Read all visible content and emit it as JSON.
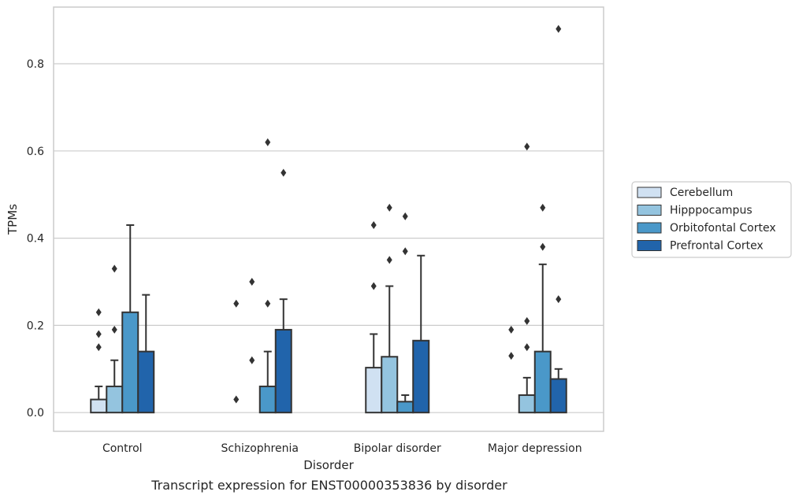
{
  "caption": "Transcript expression for ENST00000353836 by disorder",
  "chart_data": {
    "type": "bar",
    "xlabel": "Disorder",
    "ylabel": "TPMs",
    "ylim": [
      -0.043,
      0.93
    ],
    "yticks": [
      0.0,
      0.2,
      0.4,
      0.6,
      0.8
    ],
    "ytick_labels": [
      "0.0",
      "0.2",
      "0.4",
      "0.6",
      "0.8"
    ],
    "grid": "horizontal",
    "legend_position": "right",
    "categories": [
      "Control",
      "Schizophrenia",
      "Bipolar disorder",
      "Major depression"
    ],
    "series": [
      {
        "name": "Cerebellum",
        "color": "#d0e1f2",
        "values": [
          0.03,
          0.0,
          0.103,
          0.0
        ],
        "error_upper": [
          0.06,
          0.0,
          0.18,
          0.0
        ],
        "outliers": [
          [
            0.23,
            0.18,
            0.15
          ],
          [
            0.25,
            0.03
          ],
          [
            0.43,
            0.29
          ],
          [
            0.19,
            0.13
          ]
        ]
      },
      {
        "name": "Hipppocampus",
        "color": "#94c4df",
        "values": [
          0.06,
          0.0,
          0.128,
          0.04
        ],
        "error_upper": [
          0.12,
          0.0,
          0.29,
          0.08
        ],
        "outliers": [
          [
            0.33,
            0.19
          ],
          [
            0.3,
            0.12
          ],
          [
            0.47,
            0.35
          ],
          [
            0.61,
            0.21,
            0.15
          ]
        ]
      },
      {
        "name": "Orbitofontal Cortex",
        "color": "#4a98c9",
        "values": [
          0.23,
          0.06,
          0.025,
          0.14
        ],
        "error_upper": [
          0.43,
          0.14,
          0.04,
          0.34
        ],
        "outliers": [
          [],
          [
            0.62,
            0.25
          ],
          [
            0.45,
            0.37
          ],
          [
            0.47,
            0.38
          ]
        ]
      },
      {
        "name": "Prefrontal Cortex",
        "color": "#2164ab",
        "values": [
          0.14,
          0.19,
          0.165,
          0.077
        ],
        "error_upper": [
          0.27,
          0.26,
          0.36,
          0.1
        ],
        "outliers": [
          [],
          [
            0.55
          ],
          [],
          [
            0.88,
            0.26
          ]
        ]
      }
    ]
  }
}
